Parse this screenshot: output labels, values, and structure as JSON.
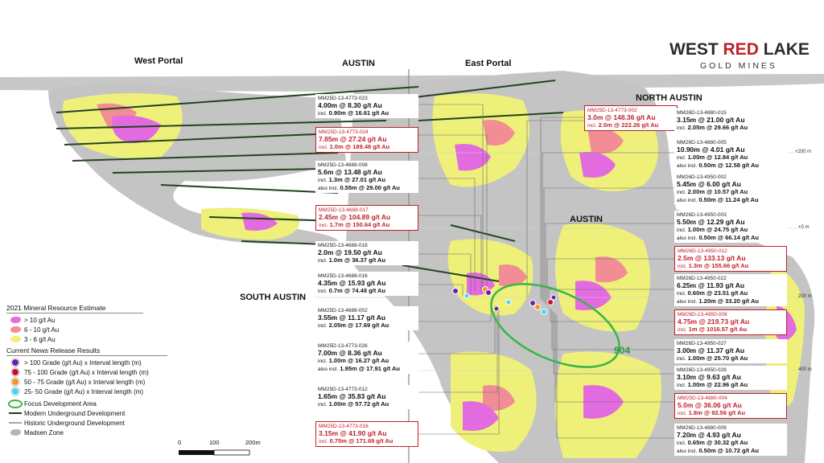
{
  "logo": {
    "brand_word1": "WEST",
    "brand_word2": "RED",
    "brand_word3": "LAKE",
    "tagline": "GOLD MINES",
    "colors": {
      "dark": "#2b2b2b",
      "red": "#c0202a"
    }
  },
  "regions": {
    "west_portal": "West Portal",
    "austin_top": "AUSTIN",
    "east_portal": "East Portal",
    "north_austin": "NORTH AUSTIN",
    "austin_mid": "AUSTIN",
    "south_austin": "SOUTH AUSTIN",
    "focus_label": "904"
  },
  "elevation_ticks": [
    "+200 m",
    "+0 m",
    "200 m",
    "400 m"
  ],
  "left_boxes": [
    {
      "id": "MM25D-13-4773-023",
      "main": "4.00m @ 8.30 g/t Au",
      "subs": [
        {
          "prefix": "incl.",
          "text": "0.90m @ 16.61 g/t Au"
        }
      ],
      "highlight": false
    },
    {
      "id": "MM25D-13-4773-024",
      "main": "7.85m @ 27.24 g/t Au",
      "subs": [
        {
          "prefix": "incl.",
          "text": "1.0m @ 189.48 g/t Au"
        }
      ],
      "highlight": true
    },
    {
      "id": "MM25D-13-4688-008",
      "main": "5.6m @ 13.48 g/t Au",
      "subs": [
        {
          "prefix": "incl.",
          "text": "1.3m @ 27.01 g/t Au"
        },
        {
          "prefix": "also incl.",
          "text": "0.55m @ 29.00 g/t Au"
        }
      ],
      "highlight": false
    },
    {
      "id": "MM25D-13-4688-017",
      "main": "2.45m @ 104.89 g/t Au",
      "subs": [
        {
          "prefix": "incl.",
          "text": "1.7m @ 150.64 g/t Au"
        }
      ],
      "highlight": true
    },
    {
      "id": "MM25D-13-4688-018",
      "main": "2.0m @ 19.50 g/t Au",
      "subs": [
        {
          "prefix": "incl.",
          "text": "1.0m @ 36.37 g/t Au"
        }
      ],
      "highlight": false
    },
    {
      "id": "MM25D-13-4688-016",
      "main": "4.35m @ 15.93 g/t Au",
      "subs": [
        {
          "prefix": "incl.",
          "text": "0.7m @ 74.48 g/t Au"
        }
      ],
      "highlight": false
    },
    {
      "id": "MM25D-13-4688-002",
      "main": "3.55m @ 11.17 g/t Au",
      "subs": [
        {
          "prefix": "incl.",
          "text": "2.05m @ 17.69 g/t Au"
        }
      ],
      "highlight": false
    },
    {
      "id": "MM25D-13-4773-026",
      "main": "7.00m @ 8.36 g/t Au",
      "subs": [
        {
          "prefix": "incl.",
          "text": "1.00m @ 16.27 g/t Au"
        },
        {
          "prefix": "also incl.",
          "text": "1.95m @ 17.91 g/t Au"
        }
      ],
      "highlight": false
    },
    {
      "id": "MM25D-13-4773-012",
      "main": "1.65m @ 35.83 g/t Au",
      "subs": [
        {
          "prefix": "incl.",
          "text": "1.00m @ 57.72 g/t Au"
        }
      ],
      "highlight": false
    },
    {
      "id": "MM25D-13-4773-016",
      "main": "3.15m @ 41.90 g/t Au",
      "subs": [
        {
          "prefix": "incl.",
          "text": "0.75m @ 171.69 g/t Au"
        }
      ],
      "highlight": true
    }
  ],
  "top_box": {
    "id": "MM25D-13-4773-002",
    "main": "3.0m @ 148.36 g/t Au",
    "subs": [
      {
        "prefix": "incl.",
        "text": "2.0m @ 222.26 g/t Au"
      }
    ],
    "highlight": true
  },
  "right_boxes": [
    {
      "id": "MM26D-13-4880-015",
      "main": "3.15m @ 21.00 g/t Au",
      "subs": [
        {
          "prefix": "incl.",
          "text": "2.05m @ 29.66 g/t Au"
        }
      ],
      "highlight": false
    },
    {
      "id": "MM26D-13-4880-005",
      "main": "10.90m @ 4.01 g/t Au",
      "subs": [
        {
          "prefix": "incl.",
          "text": "1.00m @ 12.84 g/t Au"
        },
        {
          "prefix": "also incl.",
          "text": "0.50m @ 12.58 g/t Au"
        }
      ],
      "highlight": false
    },
    {
      "id": "MM26D-13-4950-002",
      "main": "5.45m @ 6.00 g/t Au",
      "subs": [
        {
          "prefix": "incl.",
          "text": "2.00m @ 10.57 g/t Au"
        },
        {
          "prefix": "also incl.",
          "text": "0.50m @ 11.24 g/t Au"
        }
      ],
      "highlight": false
    },
    {
      "id": "MM26D-13-4950-003",
      "main": "5.50m @ 12.29 g/t Au",
      "subs": [
        {
          "prefix": "incl.",
          "text": "1.00m @ 24.75 g/t Au"
        },
        {
          "prefix": "also incl.",
          "text": "0.50m @ 66.14 g/t Au"
        }
      ],
      "highlight": false
    },
    {
      "id": "MM26D-13-4950-012",
      "main": "2.5m @ 133.13 g/t Au",
      "subs": [
        {
          "prefix": "incl.",
          "text": "1.3m @ 155.66 g/t Au"
        }
      ],
      "highlight": true
    },
    {
      "id": "MM26D-13-4950-022",
      "main": "6.25m @ 11.93 g/t Au",
      "subs": [
        {
          "prefix": "incl.",
          "text": "0.60m @ 23.51 g/t Au"
        },
        {
          "prefix": "also incl.",
          "text": "1.20m @ 33.20 g/t Au"
        }
      ],
      "highlight": false
    },
    {
      "id": "MM26D-13-4950-008",
      "main": "4.75m @ 219.73 g/t Au",
      "subs": [
        {
          "prefix": "incl.",
          "text": "1m @ 1016.57 g/t Au"
        }
      ],
      "highlight": true
    },
    {
      "id": "MM26D-13-4950-027",
      "main": "3.00m @ 11.37 g/t Au",
      "subs": [
        {
          "prefix": "incl.",
          "text": "1.00m @ 25.70 g/t Au"
        }
      ],
      "highlight": false
    },
    {
      "id": "MM26D-13-4950-028",
      "main": "3.10m @ 9.63 g/t Au",
      "subs": [
        {
          "prefix": "incl.",
          "text": "1.00m @ 22.96 g/t Au"
        }
      ],
      "highlight": false
    },
    {
      "id": "MM25D-13-4880-004",
      "main": "5.0m @ 36.06 g/t Au",
      "subs": [
        {
          "prefix": "incl.",
          "text": "1.8m @ 92.56 g/t Au"
        }
      ],
      "highlight": true
    },
    {
      "id": "MM26D-13-4880-009",
      "main": "7.20m @ 4.93 g/t Au",
      "subs": [
        {
          "prefix": "incl.",
          "text": "0.65m @ 30.32 g/t Au"
        },
        {
          "prefix": "also incl.",
          "text": "0.50m @ 10.72 g/t Au"
        }
      ],
      "highlight": false
    }
  ],
  "legend": {
    "resource_title": "2021 Mineral Resource Estimate",
    "resource_items": [
      {
        "label": "> 10 g/t Au",
        "color": "#e36be0"
      },
      {
        "label": "6 - 10 g/t Au",
        "color": "#f28c95"
      },
      {
        "label": "3 - 6 g/t Au",
        "color": "#f0f07a"
      }
    ],
    "news_title": "Current News Release Results",
    "news_items": [
      {
        "label": "> 100 Grade (g/t Au) x Interval length (m)",
        "color": "#6a1fb5"
      },
      {
        "label": "75 - 100 Grade (g/t Au) x Interval length (m)",
        "color": "#c8102e"
      },
      {
        "label": "50 - 75 Grade (g/t Au) x Interval length (m)",
        "color": "#f7941d"
      },
      {
        "label": "25- 50 Grade (g/t Au) x Interval length (m)",
        "color": "#3fd8f2"
      }
    ],
    "line_items": [
      {
        "label": "Focus Development Area",
        "kind": "ellipse",
        "color": "#39b54a"
      },
      {
        "label": "Modern Underground Development",
        "kind": "line",
        "color": "#1e3d1e"
      },
      {
        "label": "Historic Underground Development",
        "kind": "line",
        "color": "#a6a6a6"
      },
      {
        "label": "Madsen Zone",
        "kind": "blob",
        "color": "#b5b5b5"
      }
    ]
  },
  "scale_bar": {
    "labels": [
      "0",
      "100",
      "200m"
    ]
  }
}
